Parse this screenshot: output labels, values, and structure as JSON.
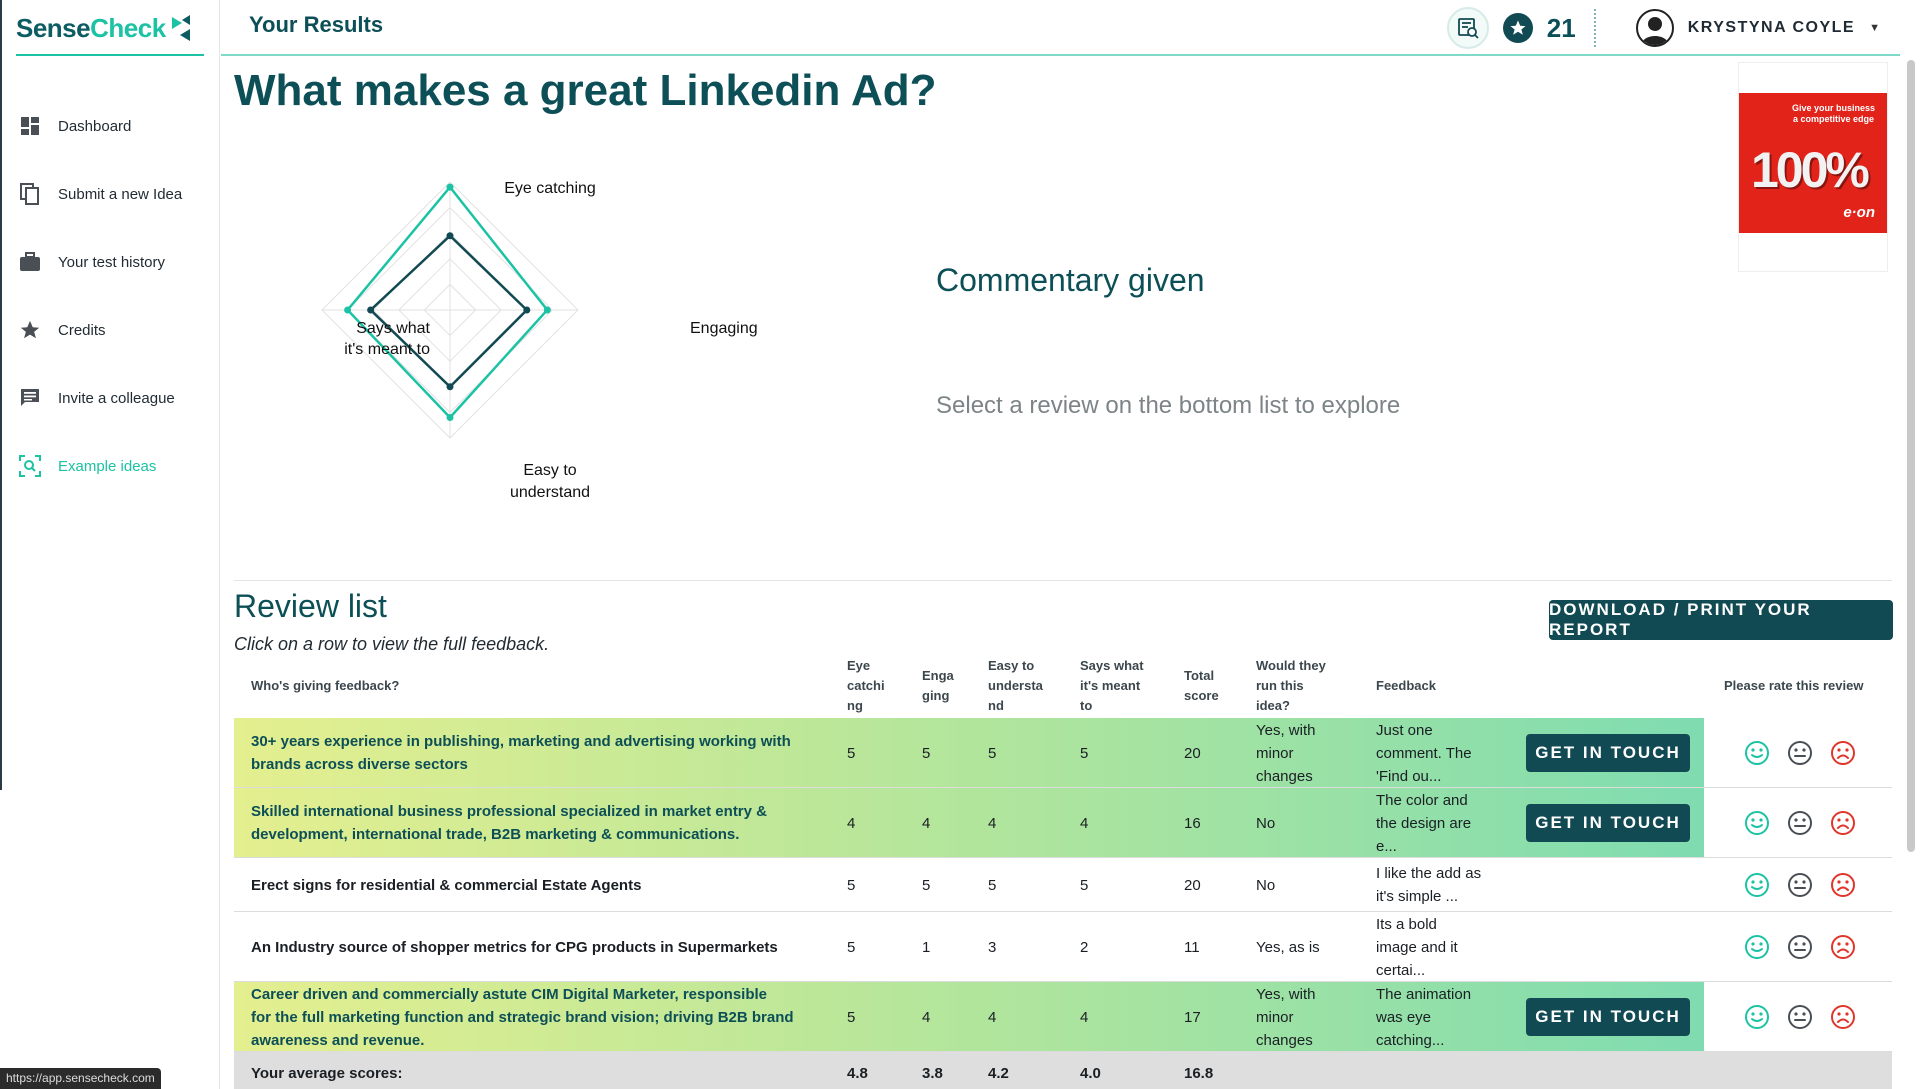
{
  "app": {
    "logo": "SenseCheck",
    "page_header": "Your Results"
  },
  "sidebar": {
    "items": [
      {
        "label": "Dashboard",
        "icon": "dashboard-icon"
      },
      {
        "label": "Submit a new Idea",
        "icon": "copy-icon"
      },
      {
        "label": "Your test history",
        "icon": "briefcase-icon"
      },
      {
        "label": "Credits",
        "icon": "star-icon"
      },
      {
        "label": "Invite a colleague",
        "icon": "chat-icon"
      },
      {
        "label": "Example ideas",
        "icon": "scan-search-icon",
        "active": true
      }
    ]
  },
  "topbar": {
    "credits": "21",
    "user_name": "KRYSTYNA COYLE"
  },
  "main": {
    "title": "What makes a great Linkedin Ad?",
    "commentary_title": "Commentary given",
    "commentary_hint": "Select a review on the bottom list to explore"
  },
  "radar": {
    "labels": {
      "top": "Eye catching",
      "right": "Engaging",
      "bottom_1": "Easy to",
      "bottom_2": "understand",
      "left_1": "Says what",
      "left_2": "it's meant to"
    },
    "max": 5,
    "series": [
      {
        "values": [
          4.8,
          3.8,
          4.2,
          4.0
        ],
        "color": "#1cc2a4"
      },
      {
        "values": [
          2.9,
          3.0,
          3.0,
          3.1
        ],
        "color": "#124a53"
      }
    ]
  },
  "ad": {
    "tagline_1": "Give your business",
    "tagline_2": "a competitive edge",
    "big": "100%",
    "brand": "e·on"
  },
  "review": {
    "title": "Review list",
    "subtitle": "Click on a row to view the full feedback.",
    "download_label": "DOWNLOAD / PRINT YOUR REPORT",
    "headers": {
      "who": "Who's giving feedback?",
      "eye_1": "Eye",
      "eye_2": "catchi",
      "eye_3": "ng",
      "eng_1": "Enga",
      "eng_2": "ging",
      "easy_1": "Easy to",
      "easy_2": "understa",
      "easy_3": "nd",
      "says_1": "Says what",
      "says_2": "it's meant",
      "says_3": "to",
      "total_1": "Total",
      "total_2": "score",
      "run_1": "Would they",
      "run_2": "run this",
      "run_3": "idea?",
      "feedback": "Feedback",
      "rate": "Please rate this review"
    },
    "get_in_touch": "GET IN TOUCH",
    "rows": [
      {
        "who_1": "30+ years experience in publishing, marketing and advertising working with",
        "who_2": "brands across diverse sectors",
        "who_3": "",
        "eye": "5",
        "eng": "5",
        "easy": "5",
        "says": "5",
        "total": "20",
        "run_1": "Yes, with",
        "run_2": "minor",
        "run_3": "changes",
        "fb_1": "Just one",
        "fb_2": "comment. The",
        "fb_3": "'Find ou...",
        "highlight": true
      },
      {
        "who_1": "Skilled international business professional specialized in market entry &",
        "who_2": "development, international trade, B2B marketing & communications.",
        "who_3": "",
        "eye": "4",
        "eng": "4",
        "easy": "4",
        "says": "4",
        "total": "16",
        "run_1": "No",
        "run_2": "",
        "run_3": "",
        "fb_1": "The color and",
        "fb_2": "the design are",
        "fb_3": "e...",
        "highlight": true
      },
      {
        "who_1": "Erect signs for residential & commercial Estate Agents",
        "who_2": "",
        "who_3": "",
        "eye": "5",
        "eng": "5",
        "easy": "5",
        "says": "5",
        "total": "20",
        "run_1": "No",
        "run_2": "",
        "run_3": "",
        "fb_1": "I like the add as",
        "fb_2": "it's simple ...",
        "fb_3": "",
        "highlight": false
      },
      {
        "who_1": "An Industry source of shopper metrics for CPG products in Supermarkets",
        "who_2": "",
        "who_3": "",
        "eye": "5",
        "eng": "1",
        "easy": "3",
        "says": "2",
        "total": "11",
        "run_1": "Yes, as is",
        "run_2": "",
        "run_3": "",
        "fb_1": "Its a bold",
        "fb_2": "image and it",
        "fb_3": "certai...",
        "highlight": false
      },
      {
        "who_1": "Career driven and commercially astute CIM Digital Marketer, responsible",
        "who_2": "for the full marketing function and strategic brand vision; driving B2B brand",
        "who_3": "awareness and revenue.",
        "eye": "5",
        "eng": "4",
        "easy": "4",
        "says": "4",
        "total": "17",
        "run_1": "Yes, with",
        "run_2": "minor",
        "run_3": "changes",
        "fb_1": "The animation",
        "fb_2": "was eye",
        "fb_3": "catching...",
        "highlight": true
      }
    ],
    "average": {
      "label": "Your average scores:",
      "eye": "4.8",
      "eng": "3.8",
      "easy": "4.2",
      "says": "4.0",
      "total": "16.8"
    }
  },
  "status_url": "https://app.sensecheck.com",
  "colors": {
    "brand_dark": "#124a53",
    "accent": "#1cc2a4",
    "title": "#0d4f57",
    "negative": "#e0352b"
  }
}
